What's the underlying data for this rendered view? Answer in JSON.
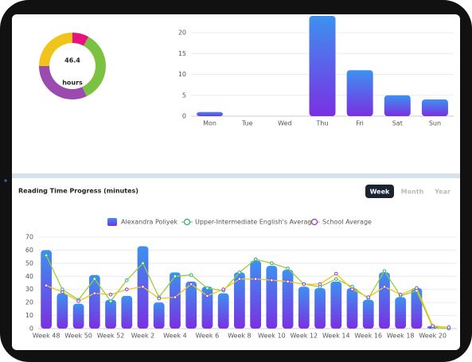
{
  "chart_data": [
    {
      "type": "donut",
      "values": [
        8,
        35,
        32,
        25
      ],
      "colors": [
        "#e8127f",
        "#7cc242",
        "#9b4bb0",
        "#f0c419"
      ],
      "center_value": 46.4,
      "center_unit": "hours"
    },
    {
      "type": "bar",
      "categories": [
        "Mon",
        "Tue",
        "Wed",
        "Thu",
        "Fri",
        "Sat",
        "Sun"
      ],
      "values": [
        1,
        0,
        0,
        24,
        11,
        5,
        4
      ],
      "gradient": [
        "#3d91f0",
        "#7a30e2"
      ],
      "ylim": [
        0,
        24
      ],
      "yticks": [
        0,
        5,
        10,
        15,
        20
      ],
      "grid": true
    },
    {
      "type": "bar_line",
      "title": "Reading Time Progress (minutes)",
      "categories": [
        "Week 48",
        null,
        "Week 50",
        null,
        "Week 52",
        null,
        "Week 2",
        null,
        "Week 4",
        null,
        "Week 6",
        null,
        "Week 8",
        null,
        "Week 10",
        null,
        "Week 12",
        null,
        "Week 14",
        null,
        "Week 16",
        null,
        "Week 18",
        null,
        "Week 20",
        null
      ],
      "series": [
        {
          "name": "Alexandra Poliyek",
          "type": "bar",
          "gradient": [
            "#3d91f0",
            "#7a30e2"
          ],
          "values": [
            60,
            27,
            19,
            41,
            22,
            25,
            63,
            20,
            43,
            36,
            32,
            27,
            43,
            52,
            48,
            45,
            32,
            31,
            36,
            31,
            22,
            43,
            24,
            31,
            2,
            0
          ]
        },
        {
          "name": "Upper-Intermediate English's Average",
          "type": "line",
          "color": "#9ccc3c",
          "marker_color": "#22b573",
          "values": [
            56,
            30,
            22,
            38,
            21,
            37,
            50,
            24,
            40,
            41,
            31,
            29,
            43,
            53,
            50,
            46,
            34,
            32,
            38,
            32,
            23,
            44,
            25,
            29,
            1,
            0
          ]
        },
        {
          "name": "School Average",
          "type": "line",
          "color": "#f0c419",
          "marker_color": "#8a3ee0",
          "values": [
            33,
            28,
            21,
            27,
            26,
            30,
            32,
            23,
            24,
            34,
            25,
            30,
            38,
            38,
            37,
            36,
            34,
            34,
            42,
            30,
            24,
            32,
            26,
            31,
            2,
            1
          ]
        }
      ],
      "ylim": [
        0,
        70
      ],
      "yticks": [
        0,
        10,
        20,
        30,
        40,
        50,
        60,
        70
      ],
      "grid": true,
      "legend": "top"
    }
  ],
  "tabs": [
    "Week",
    "Month",
    "Year"
  ],
  "active_tab": 0
}
